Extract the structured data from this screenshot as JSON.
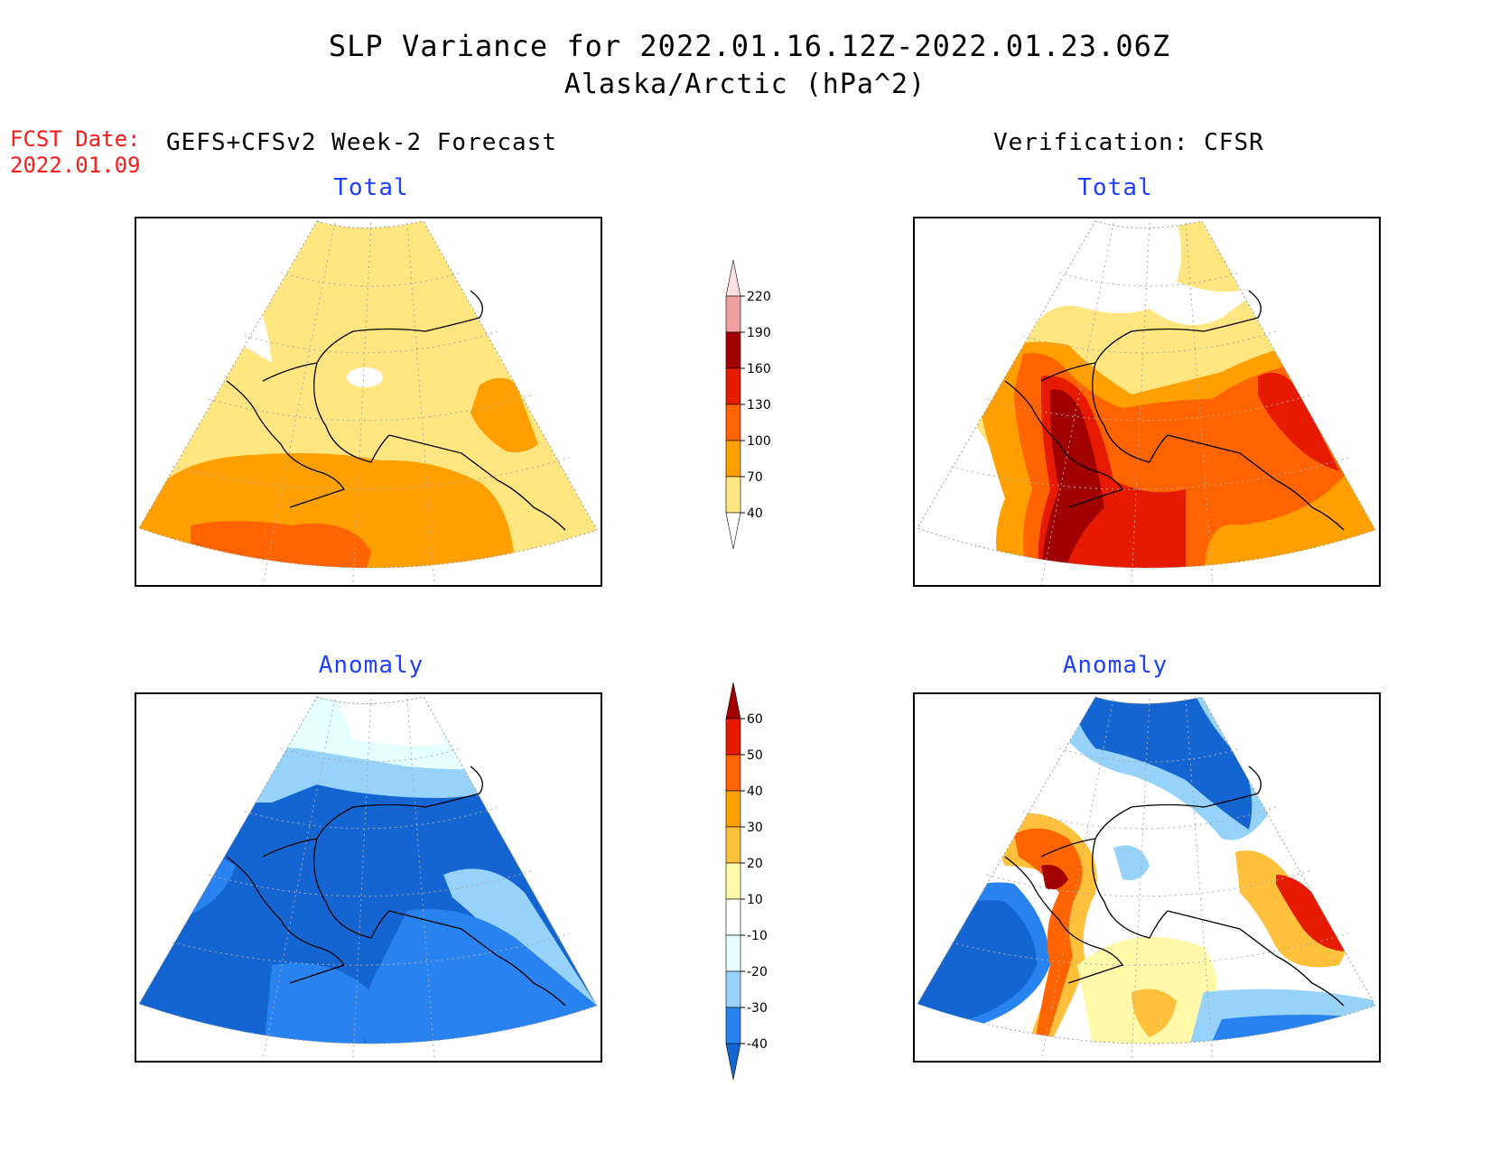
{
  "header": {
    "title_line1": "SLP Variance for 2022.01.16.12Z-2022.01.23.06Z",
    "title_line2": "Alaska/Arctic (hPa^2)",
    "fcst_date_label": "FCST Date:",
    "fcst_date_value": "2022.01.09",
    "left_column_title": "GEFS+CFSv2 Week-2 Forecast",
    "right_column_title": "Verification: CFSR"
  },
  "panels": {
    "forecast_total_title": "Total",
    "verification_total_title": "Total",
    "forecast_anomaly_title": "Anomaly",
    "verification_anomaly_title": "Anomaly"
  },
  "colorbars": {
    "total": {
      "levels": [
        "40",
        "70",
        "100",
        "130",
        "160",
        "190",
        "220"
      ],
      "colors": [
        "#ffffff",
        "#ffe680",
        "#ffa000",
        "#ff6400",
        "#e61a00",
        "#a00000",
        "#f0a0a0",
        "#ffe0e0"
      ]
    },
    "anomaly": {
      "levels": [
        "-40",
        "-30",
        "-20",
        "-10",
        "10",
        "20",
        "30",
        "40",
        "50",
        "60"
      ],
      "colors": [
        "#1464d2",
        "#2882f0",
        "#96d2fa",
        "#e6ffff",
        "#ffffff",
        "#fffaaa",
        "#ffc03c",
        "#ffa000",
        "#ff6400",
        "#e61a00",
        "#a00000"
      ]
    }
  },
  "palette": {
    "total_yellow": "#ffe680",
    "total_orange": "#ffa000",
    "total_dorange": "#ff6400",
    "total_red": "#e61a00",
    "total_dred": "#a00000",
    "total_pink": "#f0a0a0",
    "anom_b40": "#1464d2",
    "anom_b30": "#2882f0",
    "anom_b20": "#96d2fa",
    "anom_b10": "#e6ffff",
    "anom_y10": "#fffaaa",
    "anom_y20": "#ffc03c"
  }
}
